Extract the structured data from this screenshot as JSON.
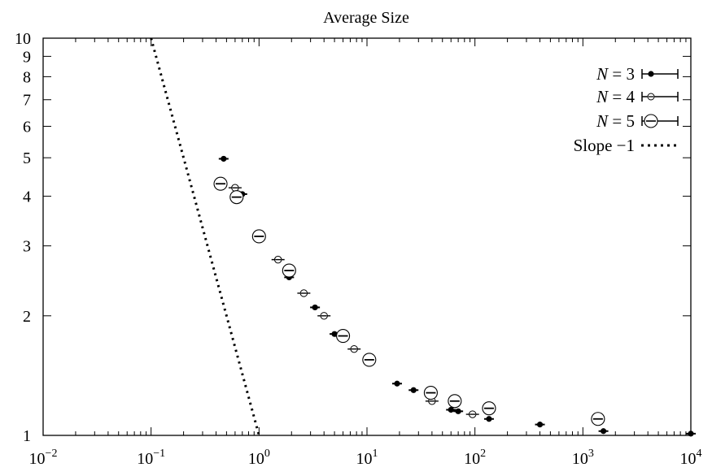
{
  "chart_data": {
    "type": "scatter",
    "title": "Average Size",
    "xlabel": "",
    "ylabel": "",
    "xscale": "log",
    "yscale": "log",
    "xlim": [
      0.01,
      10000
    ],
    "ylim": [
      1,
      10
    ],
    "x_tick_labels": [
      {
        "base": "10",
        "exp": "−2",
        "value": 0.01
      },
      {
        "base": "10",
        "exp": "−1",
        "value": 0.1
      },
      {
        "base": "10",
        "exp": "0",
        "value": 1
      },
      {
        "base": "10",
        "exp": "1",
        "value": 10
      },
      {
        "base": "10",
        "exp": "2",
        "value": 100
      },
      {
        "base": "10",
        "exp": "3",
        "value": 1000
      },
      {
        "base": "10",
        "exp": "4",
        "value": 10000
      }
    ],
    "y_tick_labels": [
      {
        "label": "1",
        "value": 1
      },
      {
        "label": "2",
        "value": 2
      },
      {
        "label": "3",
        "value": 3
      },
      {
        "label": "4",
        "value": 4
      },
      {
        "label": "5",
        "value": 5
      },
      {
        "label": "6",
        "value": 6
      },
      {
        "label": "7",
        "value": 7
      },
      {
        "label": "8",
        "value": 8
      },
      {
        "label": "9",
        "value": 9
      },
      {
        "label": "10",
        "value": 10
      }
    ],
    "grid": false,
    "legend_position": "top-right",
    "series": [
      {
        "name": "N = 3",
        "legend_parts": [
          "N",
          " = 3"
        ],
        "marker": "filled-circle",
        "points": [
          {
            "x": 0.47,
            "y": 4.97
          },
          {
            "x": 0.7,
            "y": 4.05
          },
          {
            "x": 1.9,
            "y": 2.5
          },
          {
            "x": 3.3,
            "y": 2.1
          },
          {
            "x": 5.0,
            "y": 1.8
          },
          {
            "x": 5.6,
            "y": 1.78
          },
          {
            "x": 19.0,
            "y": 1.35
          },
          {
            "x": 27.0,
            "y": 1.3
          },
          {
            "x": 60.0,
            "y": 1.16
          },
          {
            "x": 70.0,
            "y": 1.15
          },
          {
            "x": 135.0,
            "y": 1.1
          },
          {
            "x": 400.0,
            "y": 1.065
          },
          {
            "x": 1550.0,
            "y": 1.025
          },
          {
            "x": 10000.0,
            "y": 1.01
          }
        ]
      },
      {
        "name": "N = 4",
        "legend_parts": [
          "N",
          " = 4"
        ],
        "marker": "open-circle-small",
        "points": [
          {
            "x": 0.6,
            "y": 4.2
          },
          {
            "x": 1.5,
            "y": 2.77
          },
          {
            "x": 2.6,
            "y": 2.28
          },
          {
            "x": 4.0,
            "y": 2.0
          },
          {
            "x": 7.6,
            "y": 1.65
          },
          {
            "x": 40.0,
            "y": 1.22
          },
          {
            "x": 95.0,
            "y": 1.13
          }
        ]
      },
      {
        "name": "N = 5",
        "legend_parts": [
          "N",
          " = 5"
        ],
        "marker": "open-circle-large",
        "points": [
          {
            "x": 0.44,
            "y": 4.3
          },
          {
            "x": 0.62,
            "y": 3.98
          },
          {
            "x": 1.0,
            "y": 3.17
          },
          {
            "x": 1.9,
            "y": 2.6
          },
          {
            "x": 6.0,
            "y": 1.78
          },
          {
            "x": 10.5,
            "y": 1.55
          },
          {
            "x": 39.0,
            "y": 1.28
          },
          {
            "x": 65.0,
            "y": 1.22
          },
          {
            "x": 135.0,
            "y": 1.17
          },
          {
            "x": 1380.0,
            "y": 1.1
          }
        ]
      },
      {
        "name": "Slope −1",
        "legend_parts": [
          "Slope ",
          "−1"
        ],
        "marker": "dotted-line",
        "points": [
          {
            "x": 0.1,
            "y": 10
          },
          {
            "x": 1.0,
            "y": 1
          }
        ]
      }
    ]
  }
}
